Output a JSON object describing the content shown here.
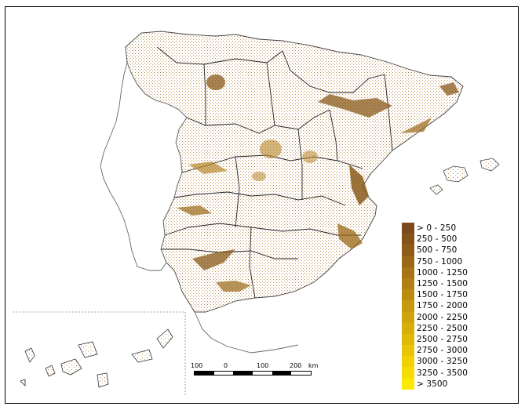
{
  "legend": {
    "items": [
      {
        "label": "> 0 - 250",
        "color": "#7a4a1c"
      },
      {
        "label": "250 - 500",
        "color": "#85531a"
      },
      {
        "label": "500 - 750",
        "color": "#8f5d18"
      },
      {
        "label": "750 - 1000",
        "color": "#9a6816"
      },
      {
        "label": "1000 - 1250",
        "color": "#a57414"
      },
      {
        "label": "1250 - 1500",
        "color": "#b08012"
      },
      {
        "label": "1500 - 1750",
        "color": "#bb8c10"
      },
      {
        "label": "1750 - 2000",
        "color": "#c6990e"
      },
      {
        "label": "2000 - 2250",
        "color": "#cfa30c"
      },
      {
        "label": "2250 - 2500",
        "color": "#d8ae0a"
      },
      {
        "label": "2500 - 2750",
        "color": "#e0b908"
      },
      {
        "label": "2750 - 3000",
        "color": "#e8c506"
      },
      {
        "label": "3000 - 3250",
        "color": "#efd104"
      },
      {
        "label": "3250 - 3500",
        "color": "#f6dc02"
      },
      {
        "label": "> 3500",
        "color": "#fde900"
      }
    ]
  },
  "scale_bar": {
    "labels": [
      "100",
      "0",
      "100",
      "200",
      "km"
    ]
  },
  "colors": {
    "outline": "#555555",
    "density_dark": "#8a5a1a",
    "density_mid": "#b8862a",
    "density_light": "#d8b36a"
  }
}
